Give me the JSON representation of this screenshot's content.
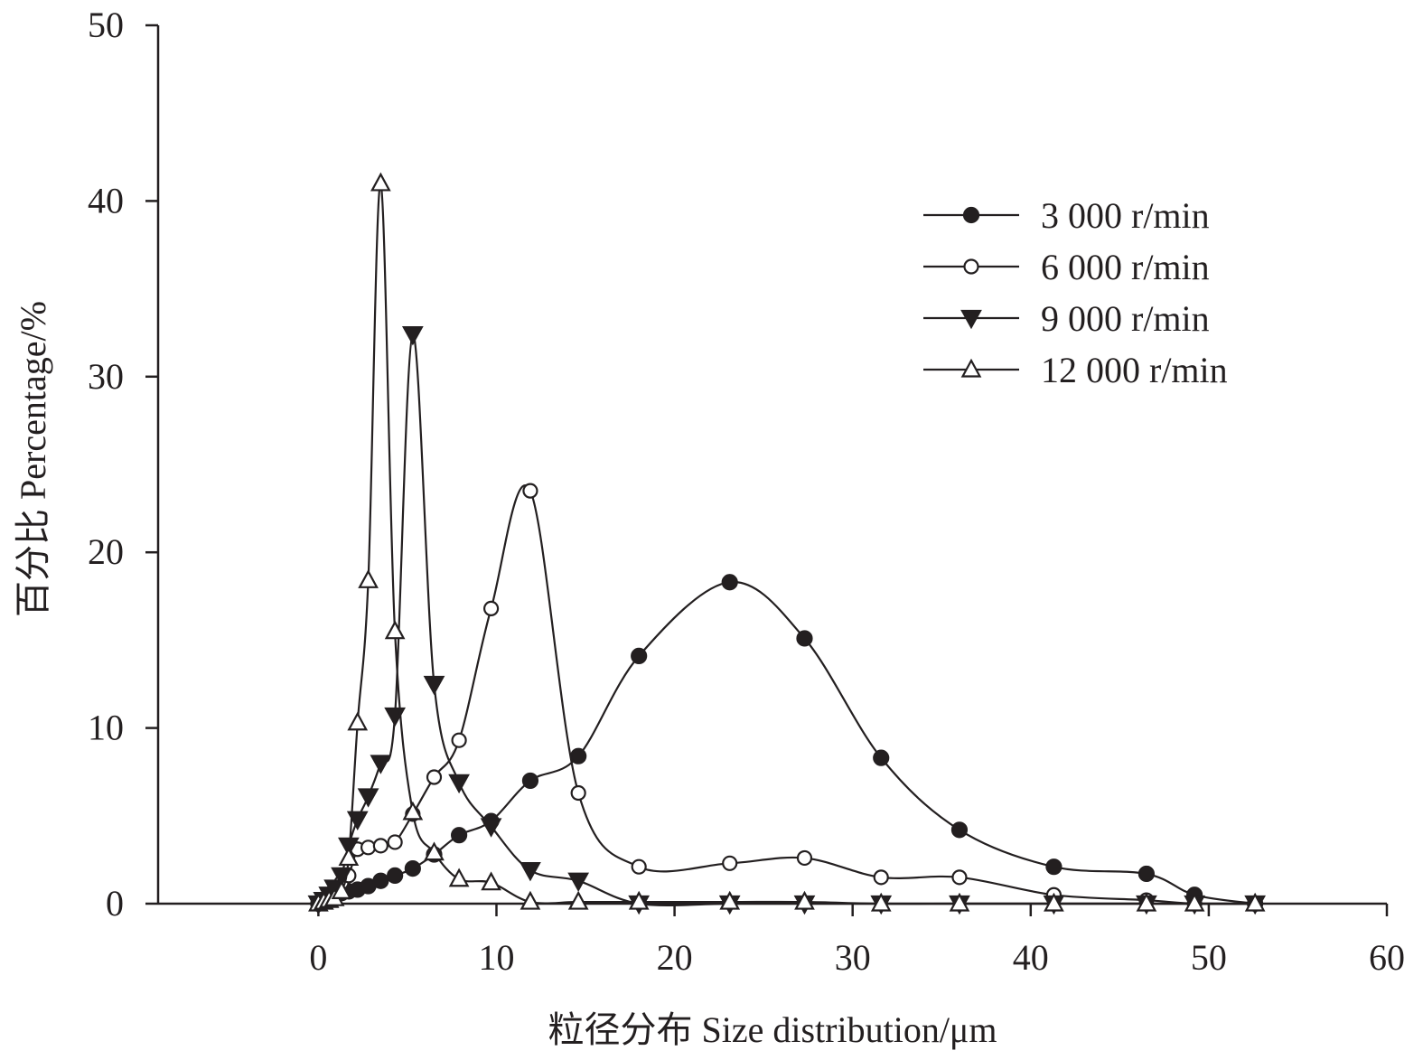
{
  "chart_data": {
    "type": "line",
    "title": "",
    "xlabel": "粒径分布 Size distribution/μm",
    "ylabel": "百分比 Percentage/%",
    "xlim": [
      -9,
      60
    ],
    "ylim": [
      0,
      50
    ],
    "xticks": [
      0,
      10,
      20,
      30,
      40,
      50,
      60
    ],
    "yticks": [
      0,
      10,
      20,
      30,
      40,
      50
    ],
    "grid": false,
    "legend_position": "top-right",
    "series": [
      {
        "name": "3 000 r/min",
        "marker": "filled-circle",
        "x": [
          0,
          0.3,
          0.6,
          0.9,
          1.3,
          1.7,
          2.2,
          2.8,
          3.5,
          4.3,
          5.3,
          6.5,
          7.9,
          9.7,
          11.9,
          14.6,
          18.0,
          23.1,
          27.3,
          31.6,
          36.0,
          41.3,
          46.5,
          49.2,
          52.6
        ],
        "y": [
          0,
          0.2,
          0.4,
          0.5,
          0.6,
          0.7,
          0.8,
          1.0,
          1.3,
          1.6,
          2.0,
          2.8,
          3.9,
          4.7,
          7.0,
          8.4,
          14.1,
          18.3,
          15.1,
          8.3,
          4.2,
          2.1,
          1.7,
          0.5,
          0
        ]
      },
      {
        "name": "6 000 r/min",
        "marker": "open-circle",
        "x": [
          0,
          0.3,
          0.6,
          0.9,
          1.3,
          1.7,
          2.2,
          2.8,
          3.5,
          4.3,
          5.3,
          6.5,
          7.9,
          9.7,
          11.9,
          14.6,
          18.0,
          23.1,
          27.3,
          31.6,
          36.0,
          41.3,
          46.5,
          49.2,
          52.6
        ],
        "y": [
          0,
          0.2,
          0.4,
          0.8,
          1.2,
          1.6,
          3.1,
          3.2,
          3.3,
          3.5,
          5.1,
          7.2,
          9.3,
          16.8,
          23.5,
          6.3,
          2.1,
          2.3,
          2.6,
          1.5,
          1.5,
          0.5,
          0.2,
          0,
          0
        ]
      },
      {
        "name": "9 000 r/min",
        "marker": "filled-triangle-down",
        "x": [
          0,
          0.3,
          0.6,
          0.9,
          1.3,
          1.7,
          2.2,
          2.8,
          3.5,
          4.3,
          5.3,
          6.5,
          7.9,
          9.7,
          11.9,
          14.6,
          18.0,
          23.1,
          27.3,
          31.6,
          36.0,
          41.3,
          46.5,
          49.2,
          52.6
        ],
        "y": [
          0,
          0.2,
          0.5,
          0.9,
          1.6,
          3.3,
          4.8,
          6.1,
          8.0,
          10.7,
          32.4,
          12.5,
          6.9,
          4.4,
          1.9,
          1.3,
          0,
          0,
          0,
          0,
          0,
          0,
          0,
          0,
          0
        ]
      },
      {
        "name": "12 000 r/min",
        "marker": "open-triangle-up",
        "x": [
          0,
          0.3,
          0.6,
          0.9,
          1.3,
          1.7,
          2.2,
          2.8,
          3.5,
          4.3,
          5.3,
          6.5,
          7.9,
          9.7,
          11.9,
          14.6,
          18.0,
          23.1,
          27.3,
          31.6,
          36.0,
          41.3,
          46.5,
          49.2,
          52.6
        ],
        "y": [
          0,
          0.1,
          0.2,
          0.3,
          0.7,
          2.6,
          10.3,
          18.4,
          41.0,
          15.5,
          5.2,
          2.9,
          1.4,
          1.2,
          0.1,
          0.1,
          0.1,
          0.1,
          0.1,
          0,
          0,
          0,
          0,
          0,
          0
        ]
      }
    ]
  }
}
